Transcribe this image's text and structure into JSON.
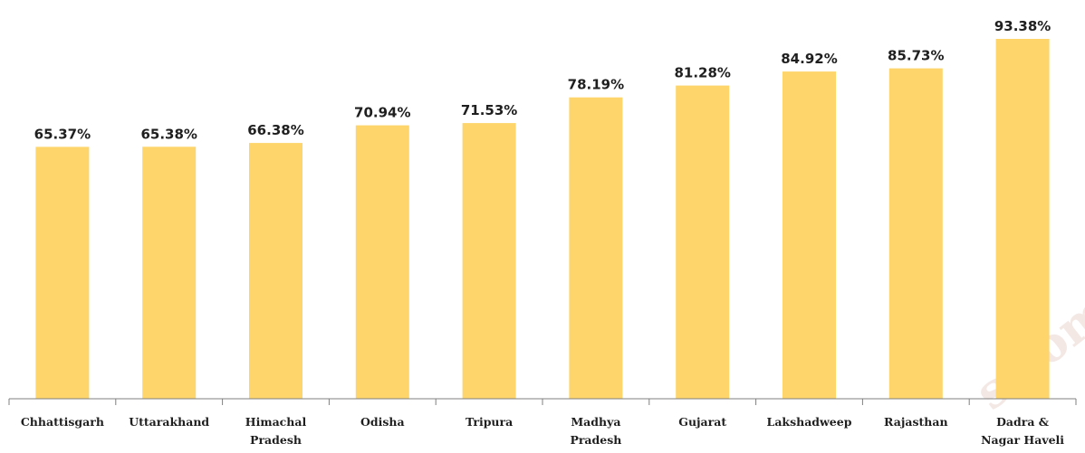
{
  "chart_data": {
    "type": "bar",
    "categories": [
      "Chhattisgarh",
      "Uttarakhand",
      "Himachal Pradesh",
      "Odisha",
      "Tripura",
      "Madhya Pradesh",
      "Gujarat",
      "Lakshadweep",
      "Rajasthan",
      "Dadra & Nagar Haveli"
    ],
    "category_label_lines": [
      [
        "Chhattisgarh"
      ],
      [
        "Uttarakhand"
      ],
      [
        "Himachal",
        "Pradesh"
      ],
      [
        "Odisha"
      ],
      [
        "Tripura"
      ],
      [
        "Madhya",
        "Pradesh"
      ],
      [
        "Gujarat"
      ],
      [
        "Lakshadweep"
      ],
      [
        "Rajasthan"
      ],
      [
        "Dadra &",
        "Nagar Haveli"
      ]
    ],
    "values": [
      65.37,
      65.38,
      66.38,
      70.94,
      71.53,
      78.19,
      81.28,
      84.92,
      85.73,
      93.38
    ],
    "data_labels": [
      "65.37%",
      "65.38%",
      "66.38%",
      "70.94%",
      "71.53%",
      "78.19%",
      "81.28%",
      "84.92%",
      "85.73%",
      "93.38%"
    ],
    "ylim": [
      0,
      93.38
    ],
    "bar_color": "#FDD56B",
    "grid": false,
    "y_axis_visible": false,
    "legend": "none"
  },
  "watermark": {
    "text": "s.com"
  }
}
